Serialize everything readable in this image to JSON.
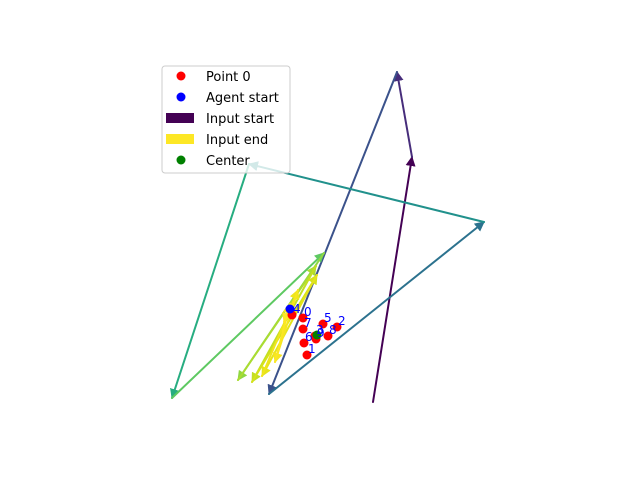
{
  "chart_data": {
    "type": "scatter",
    "title": "",
    "xlabel": "",
    "ylabel": "",
    "axes_visible": false,
    "xlim": [
      0,
      640
    ],
    "ylim": [
      480,
      0
    ],
    "legend": {
      "placement": "upper-left",
      "entries": [
        {
          "label": "Point 0",
          "marker": "dot",
          "color": "#ff0000"
        },
        {
          "label": "Agent start",
          "marker": "dot",
          "color": "#0000ff"
        },
        {
          "label": "Input start",
          "marker": "patch",
          "color": "#440154"
        },
        {
          "label": "Input end",
          "marker": "patch",
          "color": "#fde725"
        },
        {
          "label": "Center",
          "marker": "dot",
          "color": "#008000"
        }
      ]
    },
    "path": {
      "name": "input trajectory",
      "colormap_start": "#440154",
      "colormap_end": "#fde725",
      "points": [
        [
          373,
          78
        ],
        [
          412,
          323
        ],
        [
          397,
          408
        ],
        [
          269,
          86
        ],
        [
          484,
          258
        ],
        [
          249,
          316
        ],
        [
          172,
          82
        ],
        [
          324,
          227
        ],
        [
          238,
          100
        ],
        [
          316,
          214
        ],
        [
          252,
          98
        ],
        [
          317,
          205
        ],
        [
          262,
          104
        ],
        [
          298,
          190
        ],
        [
          275,
          118
        ],
        [
          290,
          176
        ],
        [
          284,
          158
        ]
      ],
      "colors": [
        "#440154",
        "#472d7b",
        "#3b528b",
        "#2c728e",
        "#21918c",
        "#27ad81",
        "#5ec962",
        "#8fd744",
        "#aadc32",
        "#c2df23",
        "#d5e21a",
        "#e5e419",
        "#f0e51c",
        "#f6e620",
        "#fbe723",
        "#fde725"
      ]
    },
    "points": [
      {
        "label": "0",
        "x": 303,
        "y": 162,
        "color": "#ff0000"
      },
      {
        "label": "1",
        "x": 307,
        "y": 125,
        "color": "#ff0000"
      },
      {
        "label": "2",
        "x": 337,
        "y": 153,
        "color": "#ff0000"
      },
      {
        "label": "3",
        "x": 315,
        "y": 144,
        "color": "#ff0000"
      },
      {
        "label": "4",
        "x": 292,
        "y": 165,
        "color": "#ff0000"
      },
      {
        "label": "5",
        "x": 323,
        "y": 156,
        "color": "#ff0000"
      },
      {
        "label": "6",
        "x": 304,
        "y": 137,
        "color": "#ff0000"
      },
      {
        "label": "7",
        "x": 303,
        "y": 151,
        "color": "#ff0000"
      },
      {
        "label": "8",
        "x": 328,
        "y": 144,
        "color": "#ff0000"
      },
      {
        "label": "9",
        "x": 316,
        "y": 141,
        "color": "#ff0000"
      }
    ],
    "agent_start": {
      "x": 290,
      "y": 171,
      "color": "#0000ff"
    },
    "center": {
      "x": 317,
      "y": 145,
      "color": "#008000"
    }
  }
}
